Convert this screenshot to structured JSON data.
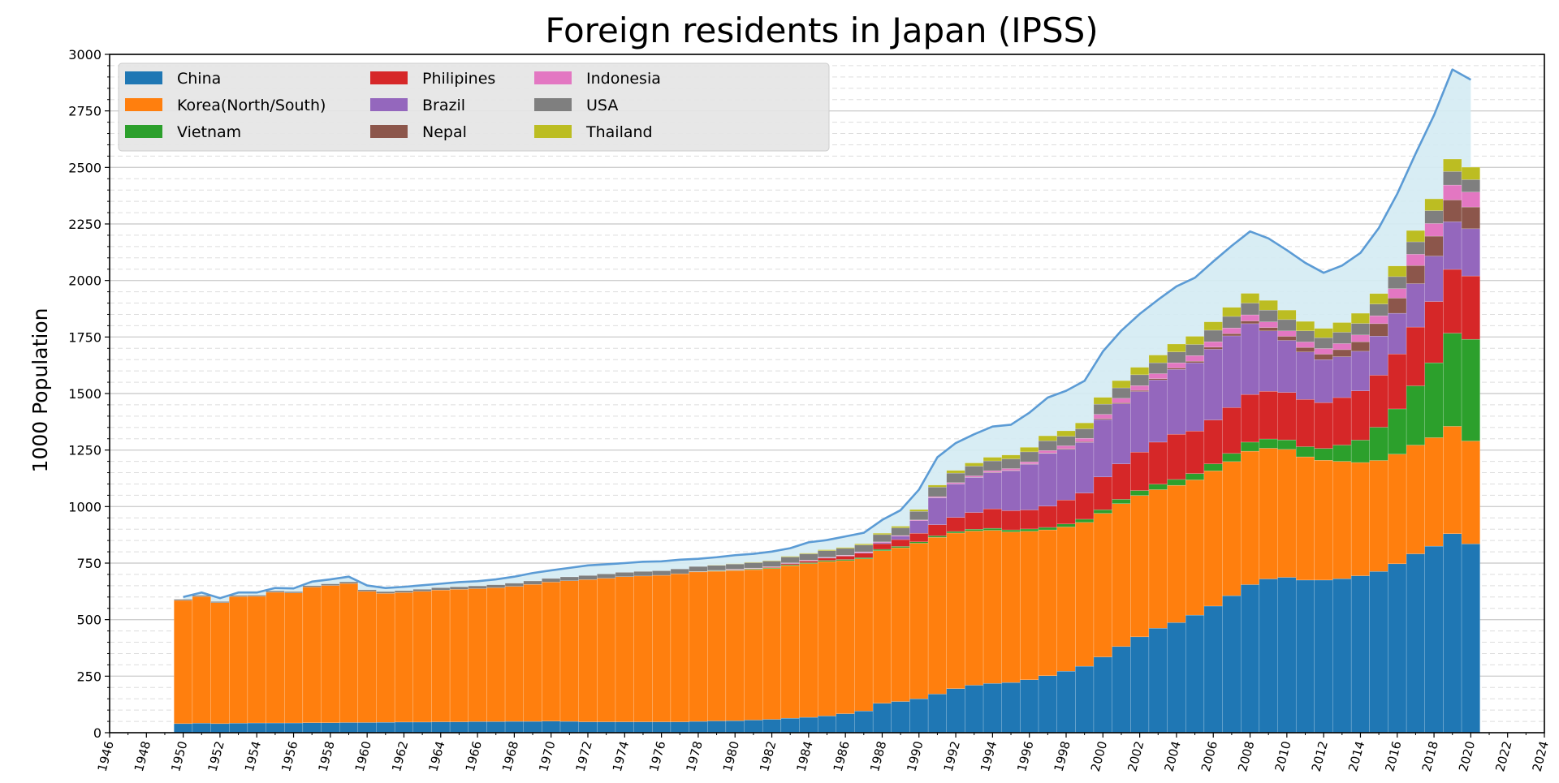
{
  "chart_data": {
    "type": "bar",
    "stacked": true,
    "title": "Foreign residents in Japan (IPSS)",
    "xlabel": "",
    "ylabel": "1000 Population",
    "xlim": [
      1946,
      2024
    ],
    "ylim": [
      0,
      3000
    ],
    "x_ticks": [
      "1946",
      "1948",
      "1950",
      "1952",
      "1954",
      "1956",
      "1958",
      "1960",
      "1962",
      "1964",
      "1966",
      "1968",
      "1970",
      "1972",
      "1974",
      "1976",
      "1978",
      "1980",
      "1982",
      "1984",
      "1986",
      "1988",
      "1990",
      "1992",
      "1994",
      "1996",
      "1998",
      "2000",
      "2002",
      "2004",
      "2006",
      "2008",
      "2010",
      "2012",
      "2014",
      "2016",
      "2018",
      "2020",
      "2022",
      "2024"
    ],
    "y_ticks": [
      "0",
      "250",
      "500",
      "750",
      "1000",
      "1250",
      "1500",
      "1750",
      "2000",
      "2250",
      "2500",
      "2750",
      "3000"
    ],
    "grid": true,
    "legend_position": "top-left",
    "categories": [
      1950,
      1951,
      1952,
      1953,
      1954,
      1955,
      1956,
      1957,
      1958,
      1959,
      1960,
      1961,
      1962,
      1963,
      1964,
      1965,
      1966,
      1967,
      1968,
      1969,
      1970,
      1971,
      1972,
      1973,
      1974,
      1975,
      1976,
      1977,
      1978,
      1979,
      1980,
      1981,
      1982,
      1983,
      1984,
      1985,
      1986,
      1987,
      1988,
      1989,
      1990,
      1991,
      1992,
      1993,
      1994,
      1995,
      1996,
      1997,
      1998,
      1999,
      2000,
      2001,
      2002,
      2003,
      2004,
      2005,
      2006,
      2007,
      2008,
      2009,
      2010,
      2011,
      2012,
      2013,
      2014,
      2015,
      2016,
      2017,
      2018,
      2019,
      2020
    ],
    "series": [
      {
        "name": "China",
        "color": "#1f77b4",
        "values": [
          40,
          42,
          40,
          42,
          43,
          43,
          43,
          44,
          44,
          45,
          45,
          46,
          47,
          47,
          48,
          48,
          49,
          49,
          50,
          50,
          51,
          50,
          48,
          48,
          48,
          48,
          48,
          48,
          50,
          52,
          53,
          56,
          59,
          64,
          68,
          74,
          84,
          96,
          130,
          138,
          150,
          171,
          195,
          210,
          218,
          222,
          234,
          252,
          272,
          294,
          335,
          381,
          424,
          462,
          487,
          520,
          560,
          606,
          655,
          680,
          687,
          675,
          675,
          681,
          694,
          713,
          747,
          791,
          825,
          880,
          835
        ]
      },
      {
        "name": "Korea(North/South)",
        "color": "#ff7f0e",
        "values": [
          545,
          560,
          535,
          560,
          560,
          578,
          575,
          600,
          607,
          615,
          580,
          570,
          573,
          578,
          583,
          586,
          588,
          592,
          597,
          606,
          615,
          622,
          629,
          635,
          642,
          645,
          648,
          655,
          661,
          662,
          664,
          665,
          667,
          675,
          680,
          683,
          677,
          673,
          675,
          680,
          688,
          693,
          688,
          682,
          677,
          666,
          657,
          645,
          638,
          636,
          635,
          632,
          625,
          613,
          607,
          598,
          598,
          593,
          590,
          578,
          566,
          545,
          530,
          519,
          501,
          491,
          485,
          481,
          480,
          475,
          455
        ]
      },
      {
        "name": "Vietnam",
        "color": "#2ca02c",
        "values": [
          0,
          0,
          0,
          0,
          0,
          0,
          0,
          0,
          0,
          0,
          0,
          0,
          0,
          0,
          0,
          0,
          0,
          0,
          0,
          0,
          0,
          0,
          0,
          0,
          0,
          0,
          0,
          0,
          1,
          2,
          2,
          3,
          3,
          4,
          4,
          5,
          5,
          5,
          6,
          6,
          6,
          7,
          7,
          8,
          9,
          9,
          10,
          11,
          13,
          14,
          16,
          19,
          22,
          24,
          26,
          28,
          31,
          36,
          40,
          41,
          42,
          45,
          52,
          72,
          99,
          147,
          200,
          262,
          331,
          412,
          450
        ]
      },
      {
        "name": "Philipines",
        "color": "#d62728",
        "values": [
          0,
          0,
          0,
          0,
          0,
          0,
          0,
          0,
          0,
          0,
          0,
          0,
          0,
          0,
          0,
          0,
          0,
          0,
          0,
          0,
          0,
          0,
          0,
          0,
          0,
          0,
          0,
          0,
          1,
          1,
          2,
          2,
          3,
          5,
          7,
          10,
          15,
          20,
          25,
          30,
          38,
          49,
          62,
          74,
          86,
          85,
          84,
          94,
          106,
          116,
          145,
          157,
          170,
          186,
          200,
          188,
          194,
          203,
          211,
          211,
          210,
          209,
          203,
          210,
          218,
          230,
          243,
          260,
          271,
          282,
          280
        ]
      },
      {
        "name": "Brazil",
        "color": "#9467bd",
        "values": [
          0,
          0,
          0,
          0,
          0,
          0,
          0,
          0,
          0,
          0,
          0,
          0,
          0,
          0,
          0,
          0,
          0,
          0,
          0,
          0,
          0,
          0,
          0,
          0,
          0,
          0,
          0,
          0,
          0,
          1,
          1,
          1,
          1,
          2,
          2,
          2,
          2,
          3,
          5,
          15,
          56,
          119,
          148,
          155,
          160,
          176,
          202,
          233,
          224,
          224,
          254,
          266,
          268,
          275,
          287,
          302,
          313,
          317,
          313,
          267,
          230,
          210,
          190,
          181,
          175,
          173,
          180,
          192,
          201,
          211,
          209
        ]
      },
      {
        "name": "Nepal",
        "color": "#8c564b",
        "values": [
          0,
          0,
          0,
          0,
          0,
          0,
          0,
          0,
          0,
          0,
          0,
          0,
          0,
          0,
          0,
          0,
          0,
          0,
          0,
          0,
          0,
          0,
          0,
          0,
          0,
          0,
          0,
          0,
          0,
          0,
          0,
          0,
          0,
          0,
          0,
          0,
          0,
          0,
          0,
          0,
          0,
          1,
          1,
          1,
          2,
          2,
          2,
          2,
          3,
          3,
          4,
          4,
          5,
          6,
          6,
          7,
          9,
          10,
          12,
          15,
          18,
          20,
          24,
          31,
          42,
          55,
          67,
          80,
          88,
          96,
          96
        ]
      },
      {
        "name": "Indonesia",
        "color": "#e377c2",
        "values": [
          0,
          0,
          0,
          0,
          0,
          0,
          0,
          0,
          0,
          0,
          0,
          0,
          0,
          0,
          0,
          0,
          0,
          0,
          0,
          0,
          0,
          0,
          0,
          0,
          0,
          0,
          0,
          0,
          0,
          0,
          1,
          1,
          1,
          1,
          2,
          2,
          2,
          3,
          3,
          3,
          3,
          4,
          5,
          6,
          7,
          8,
          9,
          11,
          13,
          15,
          19,
          20,
          21,
          22,
          23,
          25,
          24,
          25,
          27,
          25,
          24,
          24,
          25,
          27,
          30,
          35,
          42,
          50,
          56,
          66,
          66
        ]
      },
      {
        "name": "USA",
        "color": "#7f7f7f",
        "values": [
          5,
          5,
          5,
          5,
          5,
          6,
          6,
          6,
          7,
          7,
          7,
          8,
          8,
          9,
          10,
          11,
          12,
          13,
          14,
          15,
          16,
          17,
          18,
          19,
          19,
          20,
          20,
          21,
          22,
          22,
          23,
          24,
          25,
          26,
          28,
          29,
          30,
          30,
          32,
          34,
          38,
          42,
          42,
          43,
          43,
          43,
          44,
          43,
          42,
          42,
          45,
          46,
          48,
          48,
          48,
          49,
          51,
          51,
          52,
          52,
          50,
          49,
          48,
          50,
          51,
          52,
          53,
          55,
          57,
          60,
          55
        ]
      },
      {
        "name": "Thailand",
        "color": "#bcbd22",
        "values": [
          0,
          0,
          0,
          0,
          0,
          0,
          0,
          0,
          0,
          0,
          0,
          0,
          0,
          0,
          0,
          0,
          0,
          0,
          0,
          0,
          0,
          0,
          0,
          0,
          0,
          0,
          0,
          0,
          0,
          1,
          1,
          2,
          2,
          3,
          3,
          4,
          4,
          5,
          6,
          7,
          8,
          9,
          12,
          14,
          16,
          17,
          20,
          22,
          24,
          26,
          30,
          32,
          33,
          34,
          35,
          36,
          37,
          40,
          43,
          43,
          42,
          42,
          41,
          43,
          45,
          46,
          47,
          50,
          52,
          55,
          55
        ]
      }
    ],
    "total": {
      "name": "Total",
      "color": "#5b9bd5",
      "fill": "#d4ebf3",
      "values": [
        600,
        620,
        595,
        620,
        620,
        640,
        638,
        668,
        678,
        690,
        651,
        640,
        645,
        652,
        659,
        666,
        670,
        678,
        690,
        706,
        718,
        729,
        740,
        745,
        750,
        756,
        758,
        765,
        769,
        776,
        785,
        791,
        801,
        816,
        842,
        852,
        868,
        884,
        941,
        984,
        1075,
        1218,
        1281,
        1320,
        1354,
        1362,
        1415,
        1482,
        1512,
        1556,
        1686,
        1778,
        1852,
        1915,
        1974,
        2012,
        2084,
        2153,
        2217,
        2186,
        2134,
        2078,
        2034,
        2066,
        2122,
        2232,
        2383,
        2561,
        2731,
        2933,
        2888
      ]
    }
  }
}
